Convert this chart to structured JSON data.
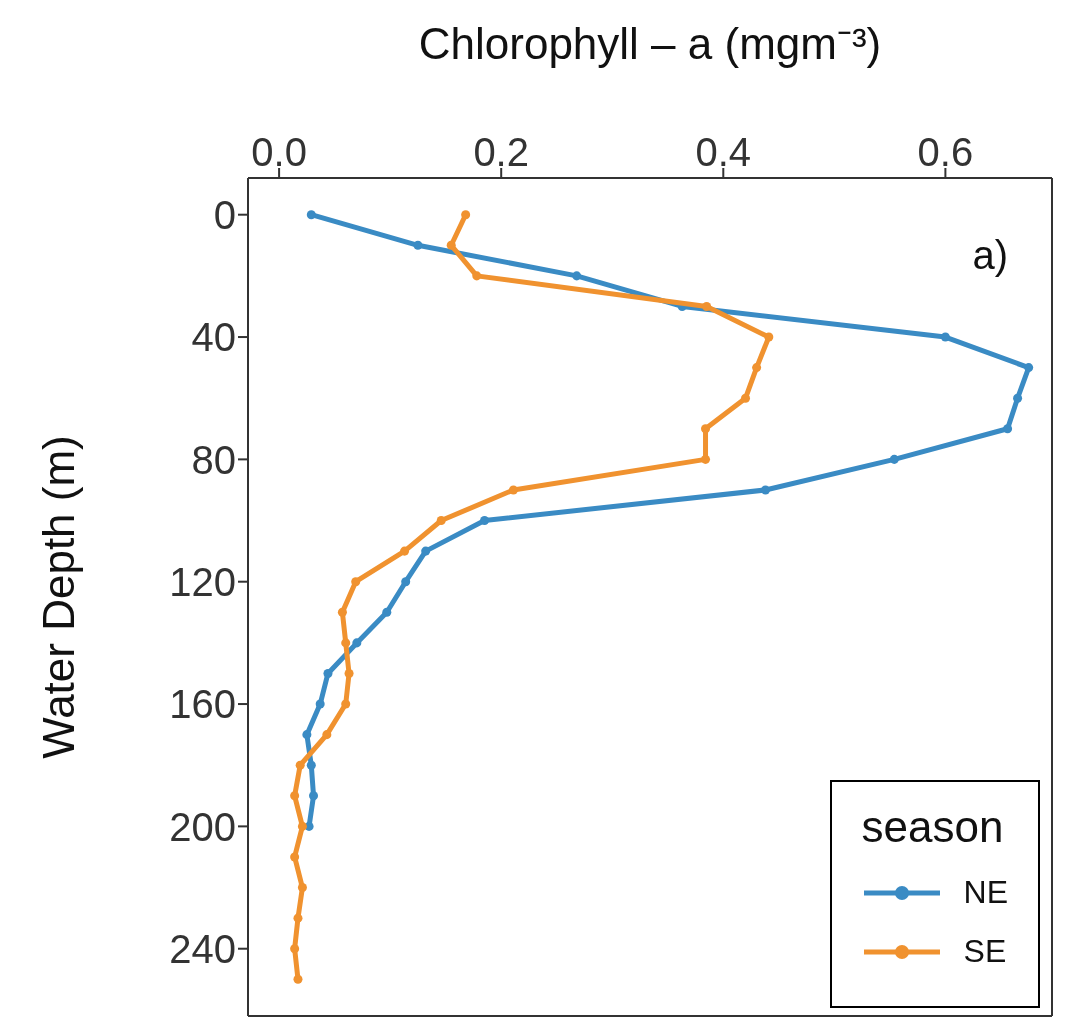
{
  "chart_data": {
    "type": "line",
    "orientation": "horizontal",
    "xlabel": "Chlorophyll – a (mgm⁻³)",
    "ylabel": "Water Depth (m)",
    "x": [
      0,
      10,
      20,
      30,
      40,
      50,
      60,
      70,
      80,
      90,
      100,
      110,
      120,
      130,
      140,
      150,
      160,
      170,
      180,
      190,
      200,
      210,
      220,
      230,
      240,
      250
    ],
    "series": [
      {
        "name": "NE",
        "color": "#3a8bc4",
        "values": [
          0.029,
          0.125,
          0.268,
          0.363,
          0.6,
          0.675,
          0.665,
          0.656,
          0.554,
          0.438,
          0.185,
          0.132,
          0.114,
          0.097,
          0.07,
          0.044,
          0.037,
          0.025,
          0.029,
          0.031,
          0.027,
          null,
          null,
          null,
          null,
          null
        ]
      },
      {
        "name": "SE",
        "color": "#f0922f",
        "values": [
          0.168,
          0.155,
          0.178,
          0.385,
          0.441,
          0.43,
          0.42,
          0.384,
          0.384,
          0.211,
          0.146,
          0.113,
          0.069,
          0.057,
          0.06,
          0.063,
          0.06,
          0.043,
          0.019,
          0.014,
          0.021,
          0.014,
          0.021,
          0.017,
          0.014,
          0.017
        ]
      }
    ],
    "xlim": [
      -0.028,
      0.696
    ],
    "xticks": [
      {
        "value": 0,
        "label": "0.0"
      },
      0.2,
      0.4,
      0.6
    ],
    "ylim": [
      262,
      -12
    ],
    "yticks": [
      0,
      40,
      80,
      120,
      160,
      200,
      240
    ],
    "legend_title": "season",
    "legend": "bottom right",
    "marker": "circle",
    "line_style": "solid",
    "annotations": [
      "a)"
    ]
  }
}
